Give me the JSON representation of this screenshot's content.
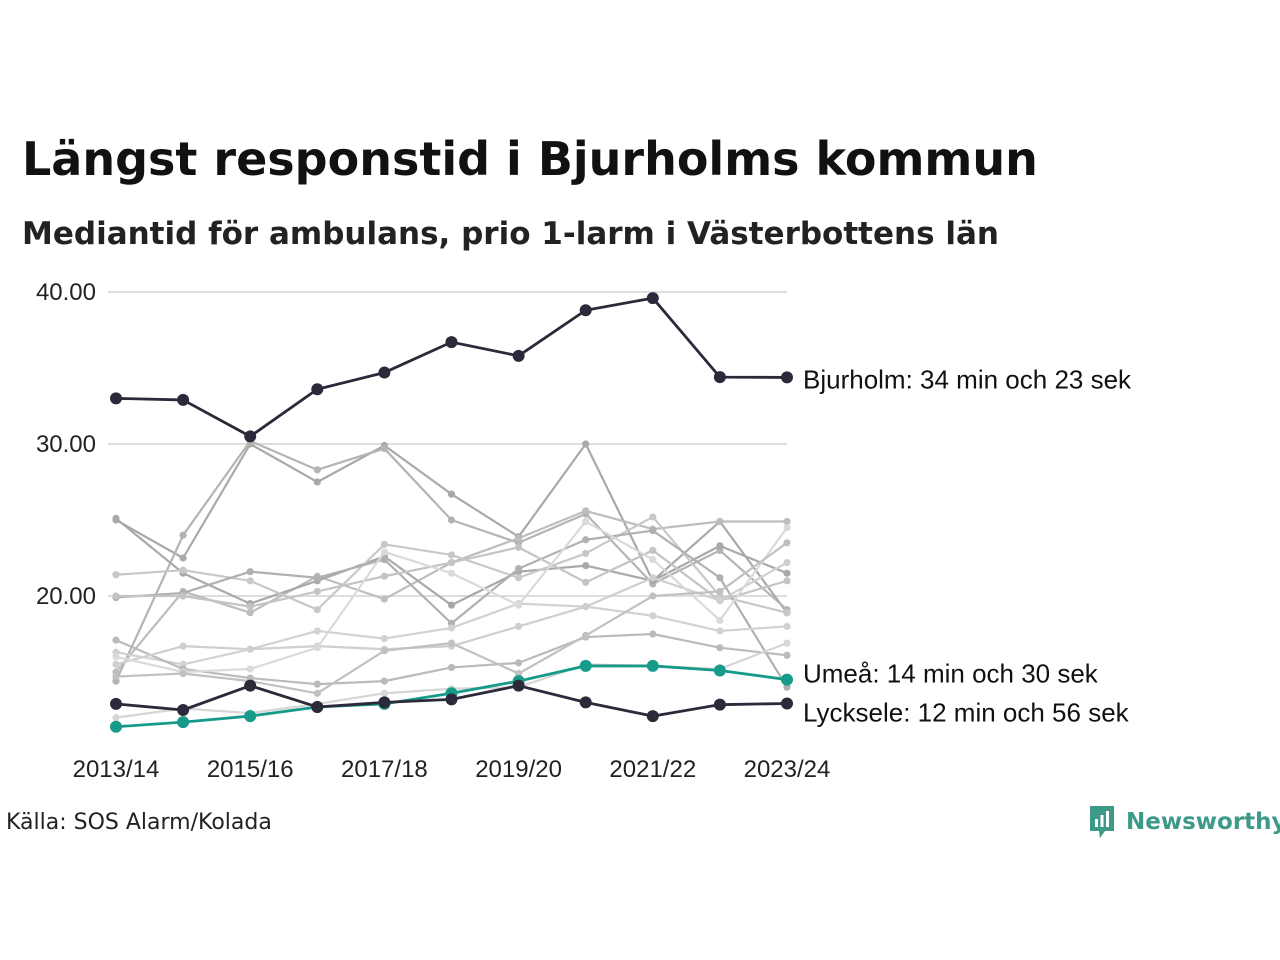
{
  "title": "Längst responstid i Bjurholms kommun",
  "subtitle": "Mediantid för ambulans, prio 1-larm i Västerbottens län",
  "source": "Källa: SOS Alarm/Kolada",
  "brand": {
    "name": "Newsworthy",
    "icon": "newsworthy-logo-icon",
    "color": "#3d9a88"
  },
  "chart_data": {
    "type": "line",
    "x": [
      "2013/14",
      "2014/15",
      "2015/16",
      "2016/17",
      "2017/18",
      "2018/19",
      "2019/20",
      "2020/21",
      "2021/22",
      "2022/23",
      "2023/24"
    ],
    "x_tick_labels": [
      "2013/14",
      "2015/16",
      "2017/18",
      "2019/20",
      "2021/22",
      "2023/24"
    ],
    "y_ticks": [
      20,
      30,
      40
    ],
    "y_tick_labels": [
      "20.00",
      "30.00",
      "40.00"
    ],
    "ylim": [
      10.5,
      40.5
    ],
    "grid": "horizontal",
    "legend": "none",
    "highlighted": [
      {
        "name": "Bjurholm",
        "label": "Bjurholm: 34 min och 23 sek",
        "color": "#2b2a3a",
        "values": [
          33.0,
          32.9,
          30.5,
          33.6,
          34.7,
          36.7,
          35.8,
          38.8,
          39.6,
          34.4,
          34.38
        ]
      },
      {
        "name": "Umeå",
        "label": "Umeå: 14 min och 30 sek",
        "color": "#169a8a",
        "values": [
          11.4,
          11.7,
          12.1,
          12.7,
          12.9,
          13.6,
          14.4,
          15.4,
          15.4,
          15.1,
          14.5
        ]
      },
      {
        "name": "Lycksele",
        "label": "Lycksele: 12 min och 56 sek",
        "color": "#2b2a3a",
        "values": [
          12.9,
          12.5,
          14.1,
          12.7,
          13.0,
          13.2,
          14.1,
          13.0,
          12.1,
          12.85,
          12.93
        ]
      }
    ],
    "background_series": [
      {
        "color": "#a9a9a9",
        "values": [
          25.0,
          22.5,
          30.0,
          27.5,
          29.9,
          26.7,
          23.9,
          30.0,
          21.0,
          24.9,
          18.9
        ]
      },
      {
        "color": "#b4b4b4",
        "values": [
          14.4,
          24.0,
          30.2,
          28.3,
          29.7,
          25.0,
          23.5,
          25.4,
          20.8,
          23.0,
          19.1
        ]
      },
      {
        "color": "#bdbdbd",
        "values": [
          15.0,
          20.3,
          18.9,
          21.3,
          19.8,
          22.2,
          23.8,
          25.6,
          24.4,
          24.9,
          24.9
        ]
      },
      {
        "color": "#a9a9a9",
        "values": [
          25.1,
          21.5,
          19.5,
          21.0,
          22.6,
          19.4,
          21.6,
          22.0,
          21.0,
          23.3,
          21.5
        ]
      },
      {
        "color": "#c8c8c8",
        "values": [
          21.4,
          21.7,
          21.0,
          19.1,
          23.4,
          22.7,
          21.2,
          22.8,
          25.2,
          20.0,
          18.9
        ]
      },
      {
        "color": "#b0b0b0",
        "values": [
          19.9,
          20.2,
          21.6,
          21.2,
          22.4,
          18.2,
          21.8,
          23.7,
          24.3,
          21.2,
          14.0
        ]
      },
      {
        "color": "#d2d2d2",
        "values": [
          16.3,
          15.5,
          16.5,
          17.7,
          17.2,
          17.9,
          19.5,
          19.3,
          18.7,
          17.7,
          18.0
        ]
      },
      {
        "color": "#c4c4c4",
        "values": [
          20.0,
          20.0,
          19.3,
          20.3,
          21.3,
          22.2,
          23.2,
          20.9,
          23.0,
          19.7,
          21.0
        ]
      },
      {
        "color": "#bababa",
        "values": [
          17.1,
          15.2,
          14.6,
          14.2,
          14.4,
          15.3,
          15.6,
          17.3,
          17.5,
          16.6,
          16.1
        ]
      },
      {
        "color": "#cfcfcf",
        "values": [
          15.5,
          16.7,
          16.5,
          16.7,
          16.5,
          16.7,
          18.0,
          19.3,
          21.2,
          19.7,
          22.2
        ]
      },
      {
        "color": "#dadada",
        "values": [
          16.0,
          15.0,
          15.2,
          16.6,
          22.9,
          21.5,
          19.4,
          24.9,
          22.4,
          18.4,
          24.5
        ]
      },
      {
        "color": "#c0c0c0",
        "values": [
          14.7,
          14.9,
          14.4,
          13.6,
          16.4,
          16.9,
          14.9,
          17.4,
          20.0,
          20.3,
          23.5
        ]
      },
      {
        "color": "#d6d6d6",
        "values": [
          12.0,
          12.6,
          12.3,
          12.9,
          13.6,
          13.9,
          14.0,
          15.5,
          15.4,
          15.2,
          16.9
        ]
      }
    ]
  }
}
